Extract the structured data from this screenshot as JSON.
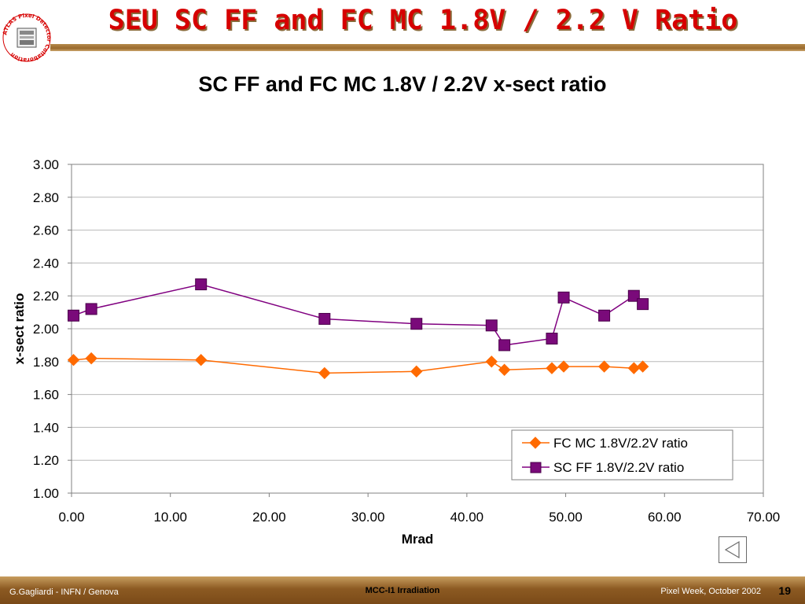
{
  "slide": {
    "title": "SEU SC FF and FC MC 1.8V / 2.2 V Ratio",
    "logo_text": "ATLAS Pixel Detector Collaboration"
  },
  "colors": {
    "title": "#d60000",
    "fc_series": "#ff6a00",
    "sc_line": "#800080",
    "sc_marker": "#7a0a7a",
    "footer": "#8c5a22"
  },
  "chart_data": {
    "type": "scatter",
    "title": "SC FF and FC MC 1.8V / 2.2V x-sect ratio",
    "xlabel": "Mrad",
    "ylabel": "x-sect ratio",
    "xlim": [
      0,
      70
    ],
    "ylim": [
      1.0,
      3.0
    ],
    "x_ticks": [
      "0.00",
      "10.00",
      "20.00",
      "30.00",
      "40.00",
      "50.00",
      "60.00",
      "70.00"
    ],
    "y_ticks": [
      "1.00",
      "1.20",
      "1.40",
      "1.60",
      "1.80",
      "2.00",
      "2.20",
      "2.40",
      "2.60",
      "2.80",
      "3.00"
    ],
    "grid": "horizontal",
    "legend_position": "bottom-right",
    "series": [
      {
        "name": "FC MC 1.8V/2.2V ratio",
        "marker": "diamond",
        "points": [
          [
            0.2,
            1.81
          ],
          [
            2.0,
            1.82
          ],
          [
            13.1,
            1.81
          ],
          [
            25.6,
            1.73
          ],
          [
            34.9,
            1.74
          ],
          [
            42.5,
            1.8
          ],
          [
            43.8,
            1.75
          ],
          [
            48.6,
            1.76
          ],
          [
            49.8,
            1.77
          ],
          [
            53.9,
            1.77
          ],
          [
            56.9,
            1.76
          ],
          [
            57.8,
            1.77
          ]
        ]
      },
      {
        "name": "SC FF 1.8V/2.2V ratio",
        "marker": "square",
        "points": [
          [
            0.2,
            2.08
          ],
          [
            2.0,
            2.12
          ],
          [
            13.1,
            2.27
          ],
          [
            25.6,
            2.06
          ],
          [
            34.9,
            2.03
          ],
          [
            42.5,
            2.02
          ],
          [
            43.8,
            1.9
          ],
          [
            48.6,
            1.94
          ],
          [
            49.8,
            2.19
          ],
          [
            53.9,
            2.08
          ],
          [
            56.9,
            2.2
          ],
          [
            57.8,
            2.15
          ]
        ]
      }
    ]
  },
  "footer": {
    "author": "G.Gagliardi - INFN / Genova",
    "center": "MCC-I1 Irradiation",
    "event": "Pixel Week, October 2002",
    "page": "19"
  },
  "nav": {
    "back_icon": "triangle-left"
  }
}
